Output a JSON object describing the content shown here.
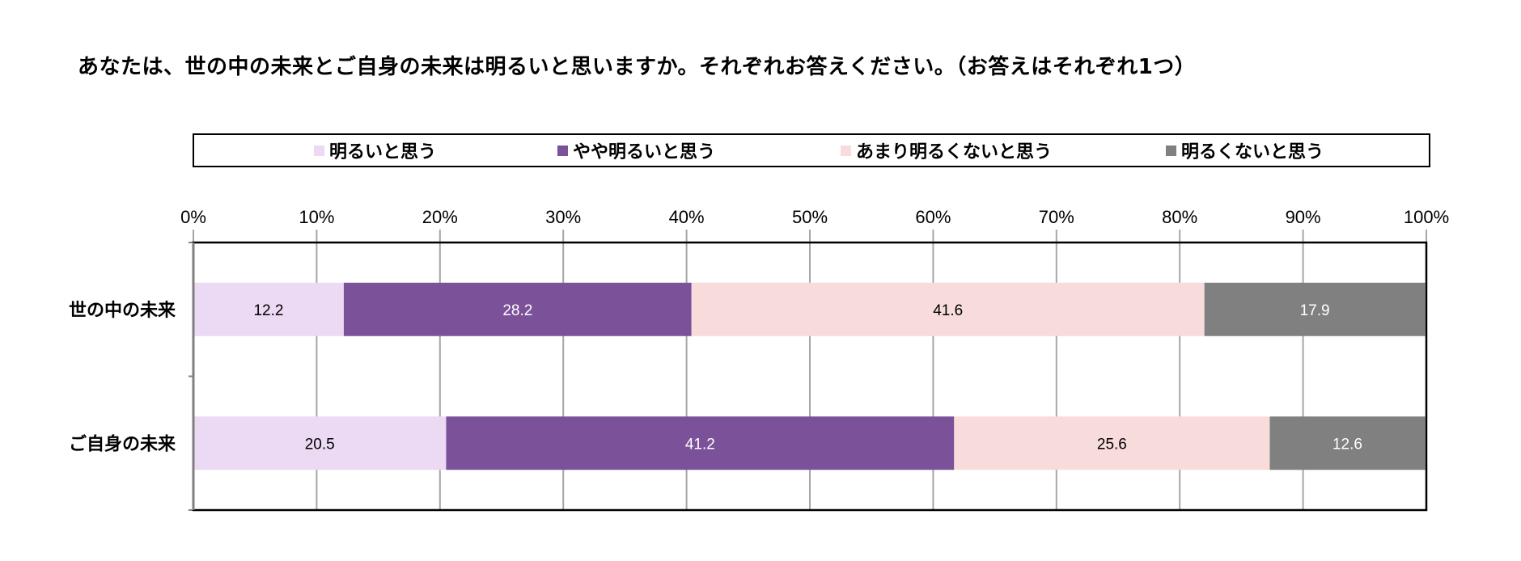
{
  "chart_data": {
    "type": "bar",
    "orientation": "horizontal",
    "stacked": "percent",
    "title": "あなたは、世の中の未来とご自身の未来は明るいと思いますか。それぞれお答えください。（お答えはそれぞれ1つ）",
    "categories": [
      "世の中の未来",
      "ご自身の未来"
    ],
    "series": [
      {
        "name": "明るいと思う",
        "color": "#ecd9f3",
        "label_color": "#000000",
        "values": [
          12.2,
          20.5
        ]
      },
      {
        "name": "やや明るいと思う",
        "color": "#7b5299",
        "label_color": "#ffffff",
        "values": [
          28.2,
          41.2
        ]
      },
      {
        "name": "あまり明るくないと思う",
        "color": "#f8dcdc",
        "label_color": "#000000",
        "values": [
          41.6,
          25.6
        ]
      },
      {
        "name": "明るくないと思う",
        "color": "#808080",
        "label_color": "#ffffff",
        "values": [
          17.9,
          12.6
        ]
      }
    ],
    "xlim": [
      0,
      100
    ],
    "xticks": [
      "0%",
      "10%",
      "20%",
      "30%",
      "40%",
      "50%",
      "60%",
      "70%",
      "80%",
      "90%",
      "100%"
    ],
    "grid": true,
    "legend_position": "top"
  }
}
